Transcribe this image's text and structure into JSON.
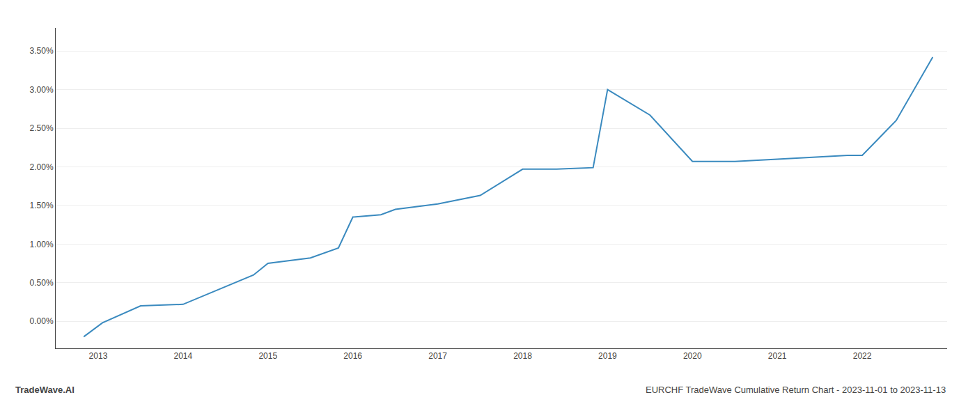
{
  "chart_data": {
    "type": "line",
    "x": [
      2012.83,
      2013.05,
      2013.5,
      2014.0,
      2014.83,
      2015.0,
      2015.5,
      2015.83,
      2016.0,
      2016.33,
      2016.5,
      2016.83,
      2017.0,
      2017.5,
      2018.0,
      2018.4,
      2018.83,
      2019.0,
      2019.5,
      2020.0,
      2020.5,
      2021.0,
      2021.5,
      2021.83,
      2022.0,
      2022.4,
      2022.83
    ],
    "values": [
      -0.002,
      -0.0002,
      0.002,
      0.0022,
      0.006,
      0.0075,
      0.0082,
      0.0095,
      0.0135,
      0.0138,
      0.0145,
      0.015,
      0.0152,
      0.0163,
      0.0197,
      0.0197,
      0.0199,
      0.03,
      0.0267,
      0.0207,
      0.0207,
      0.021,
      0.0213,
      0.0215,
      0.0215,
      0.026,
      0.0342
    ],
    "color": "#3a8abf",
    "xlim": [
      2012.5,
      2023.0
    ],
    "ylim": [
      -0.0035,
      0.038
    ],
    "xticks": [
      2013,
      2014,
      2015,
      2016,
      2017,
      2018,
      2019,
      2020,
      2021,
      2022
    ],
    "yticks": [
      {
        "value": 0.0,
        "label": "0.00%"
      },
      {
        "value": 0.005,
        "label": "0.50%"
      },
      {
        "value": 0.01,
        "label": "1.00%"
      },
      {
        "value": 0.015,
        "label": "1.50%"
      },
      {
        "value": 0.02,
        "label": "2.00%"
      },
      {
        "value": 0.025,
        "label": "2.50%"
      },
      {
        "value": 0.03,
        "label": "3.00%"
      },
      {
        "value": 0.035,
        "label": "3.50%"
      }
    ],
    "grid": true,
    "annotations": [
      "TradeWave.AI",
      "EURCHF TradeWave Cumulative Return Chart - 2023-11-01 to 2023-11-13"
    ]
  }
}
